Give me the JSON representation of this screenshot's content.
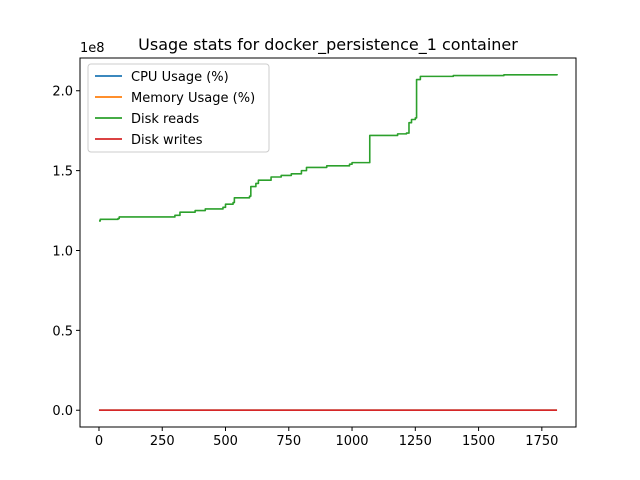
{
  "chart_data": {
    "type": "line",
    "title": "Usage stats for docker_persistence_1 container",
    "xlabel": "",
    "ylabel": "",
    "y_scale_label": "1e8",
    "y_multiplier": 100000000,
    "xlim": [
      -75,
      1885
    ],
    "ylim": [
      -0.105,
      2.205
    ],
    "x_ticks": [
      0,
      250,
      500,
      750,
      1000,
      1250,
      1500,
      1750
    ],
    "x_tick_labels": [
      "0",
      "250",
      "500",
      "750",
      "1000",
      "1250",
      "1500",
      "1750"
    ],
    "y_ticks": [
      0.0,
      0.5,
      1.0,
      1.5,
      2.0
    ],
    "y_tick_labels": [
      "0.0",
      "0.5",
      "1.0",
      "1.5",
      "2.0"
    ],
    "grid": false,
    "legend_position": "upper-left",
    "series": [
      {
        "name": "CPU Usage (%)",
        "color": "#1f77b4",
        "points": [
          [
            0,
            0.0
          ],
          [
            1810,
            0.0
          ]
        ]
      },
      {
        "name": "Memory Usage (%)",
        "color": "#ff7f0e",
        "points": [
          [
            0,
            0.0
          ],
          [
            1810,
            0.0
          ]
        ]
      },
      {
        "name": "Disk reads",
        "color": "#2ca02c",
        "points": [
          [
            0,
            1.185
          ],
          [
            5,
            1.195
          ],
          [
            75,
            1.2
          ],
          [
            80,
            1.21
          ],
          [
            300,
            1.22
          ],
          [
            320,
            1.24
          ],
          [
            380,
            1.25
          ],
          [
            420,
            1.26
          ],
          [
            490,
            1.27
          ],
          [
            500,
            1.29
          ],
          [
            530,
            1.3
          ],
          [
            535,
            1.33
          ],
          [
            595,
            1.34
          ],
          [
            600,
            1.4
          ],
          [
            620,
            1.42
          ],
          [
            630,
            1.44
          ],
          [
            680,
            1.46
          ],
          [
            720,
            1.47
          ],
          [
            760,
            1.48
          ],
          [
            800,
            1.5
          ],
          [
            820,
            1.52
          ],
          [
            900,
            1.53
          ],
          [
            990,
            1.54
          ],
          [
            1000,
            1.55
          ],
          [
            1065,
            1.55
          ],
          [
            1070,
            1.72
          ],
          [
            1180,
            1.73
          ],
          [
            1215,
            1.735
          ],
          [
            1225,
            1.8
          ],
          [
            1235,
            1.82
          ],
          [
            1250,
            1.83
          ],
          [
            1255,
            2.07
          ],
          [
            1270,
            2.09
          ],
          [
            1400,
            2.095
          ],
          [
            1600,
            2.1
          ],
          [
            1810,
            2.105
          ]
        ]
      },
      {
        "name": "Disk writes",
        "color": "#d62728",
        "points": [
          [
            0,
            0.0
          ],
          [
            1810,
            0.0
          ]
        ]
      }
    ]
  }
}
